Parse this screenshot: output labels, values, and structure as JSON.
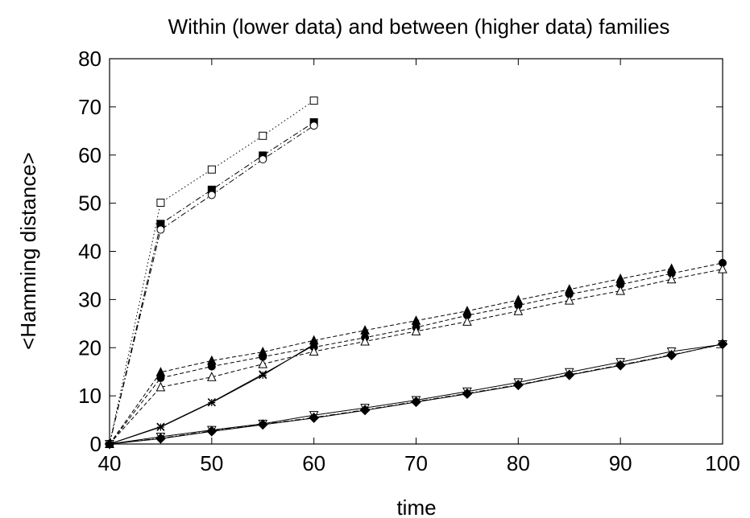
{
  "chart_data": {
    "type": "line",
    "title": "Within (lower data) and between (higher data) families",
    "xlabel": "time",
    "ylabel": "<Hamming distance>",
    "xlim": [
      40,
      100
    ],
    "ylim": [
      0,
      80
    ],
    "xticks": [
      40,
      50,
      60,
      70,
      80,
      90,
      100
    ],
    "yticks": [
      0,
      10,
      20,
      30,
      40,
      50,
      60,
      70,
      80
    ],
    "grid": false,
    "legend": "none",
    "series": [
      {
        "marker": "square-open",
        "dash": "dotted",
        "points": [
          [
            40,
            0
          ],
          [
            45,
            50.1
          ],
          [
            50,
            57
          ],
          [
            55,
            64
          ],
          [
            60,
            71.3
          ]
        ]
      },
      {
        "marker": "square-filled",
        "dash": "dashdot",
        "points": [
          [
            40,
            0
          ],
          [
            45,
            45.7
          ],
          [
            50,
            52.8
          ],
          [
            55,
            59.9
          ],
          [
            60,
            66.8
          ]
        ]
      },
      {
        "marker": "circle-open",
        "dash": "dashdot",
        "points": [
          [
            40,
            0
          ],
          [
            45,
            44.5
          ],
          [
            50,
            51.7
          ],
          [
            55,
            59.1
          ],
          [
            60,
            66.1
          ]
        ]
      },
      {
        "marker": "triangle-filled",
        "dash": "dashed",
        "points": [
          [
            40,
            0
          ],
          [
            45,
            14.9
          ],
          [
            50,
            17.3
          ],
          [
            55,
            19.1
          ],
          [
            60,
            21.5
          ],
          [
            65,
            23.6
          ],
          [
            70,
            25.6
          ],
          [
            75,
            27.6
          ],
          [
            80,
            29.9
          ],
          [
            85,
            32.1
          ],
          [
            90,
            34.3
          ],
          [
            95,
            36.4
          ]
        ]
      },
      {
        "marker": "circle-filled",
        "dash": "dashed",
        "points": [
          [
            40,
            0
          ],
          [
            45,
            13.7
          ],
          [
            50,
            16.1
          ],
          [
            55,
            18.1
          ],
          [
            60,
            20.1
          ],
          [
            65,
            22.1
          ],
          [
            70,
            24.2
          ],
          [
            75,
            26.7
          ],
          [
            80,
            28.8
          ],
          [
            85,
            31.1
          ],
          [
            90,
            33.1
          ],
          [
            95,
            35.4
          ],
          [
            100,
            37.6
          ]
        ]
      },
      {
        "marker": "triangle-open",
        "dash": "dashed",
        "points": [
          [
            40,
            0
          ],
          [
            45,
            11.8
          ],
          [
            50,
            13.9
          ],
          [
            55,
            16.6
          ],
          [
            60,
            19.2
          ],
          [
            65,
            21.3
          ],
          [
            70,
            23.4
          ],
          [
            75,
            25.4
          ],
          [
            80,
            27.6
          ],
          [
            85,
            29.8
          ],
          [
            90,
            31.8
          ],
          [
            95,
            34.2
          ],
          [
            100,
            36.3
          ]
        ]
      },
      {
        "marker": "star",
        "dash": "solid",
        "points": [
          [
            40,
            0
          ],
          [
            45,
            3.5
          ],
          [
            50,
            8.6
          ],
          [
            55,
            14.3
          ],
          [
            60,
            20.7
          ]
        ]
      },
      {
        "marker": "x",
        "dash": "solid",
        "points": [
          [
            40,
            0
          ],
          [
            45,
            3.6
          ],
          [
            50,
            8.7
          ],
          [
            55,
            14.5
          ],
          [
            60,
            20.5
          ]
        ]
      },
      {
        "marker": "triangle-down-open",
        "dash": "solid",
        "points": [
          [
            40,
            0
          ],
          [
            45,
            1.5
          ],
          [
            50,
            2.9
          ],
          [
            55,
            4.2
          ],
          [
            60,
            6.0
          ],
          [
            65,
            7.5
          ],
          [
            70,
            9.1
          ],
          [
            75,
            10.9
          ],
          [
            80,
            12.8
          ],
          [
            85,
            14.9
          ],
          [
            90,
            17.0
          ],
          [
            95,
            19.2
          ],
          [
            100,
            20.7
          ]
        ]
      },
      {
        "marker": "diamond-open",
        "dash": "dashdot",
        "points": [
          [
            40,
            0
          ],
          [
            45,
            1.2
          ],
          [
            50,
            2.7
          ],
          [
            55,
            4.1
          ],
          [
            60,
            5.5
          ],
          [
            65,
            7.1
          ],
          [
            70,
            8.8
          ],
          [
            75,
            10.5
          ],
          [
            80,
            12.3
          ],
          [
            85,
            14.4
          ],
          [
            90,
            16.4
          ],
          [
            95,
            18.5
          ],
          [
            100,
            20.7
          ]
        ]
      },
      {
        "marker": "diamond-filled",
        "dash": "solid",
        "points": [
          [
            40,
            0
          ],
          [
            45,
            1.1
          ],
          [
            50,
            2.6
          ],
          [
            55,
            4.0
          ],
          [
            60,
            5.4
          ],
          [
            65,
            7.0
          ],
          [
            70,
            8.7
          ],
          [
            75,
            10.4
          ],
          [
            80,
            12.2
          ],
          [
            85,
            14.3
          ],
          [
            90,
            16.3
          ],
          [
            95,
            18.4
          ],
          [
            100,
            20.8
          ]
        ]
      }
    ]
  }
}
